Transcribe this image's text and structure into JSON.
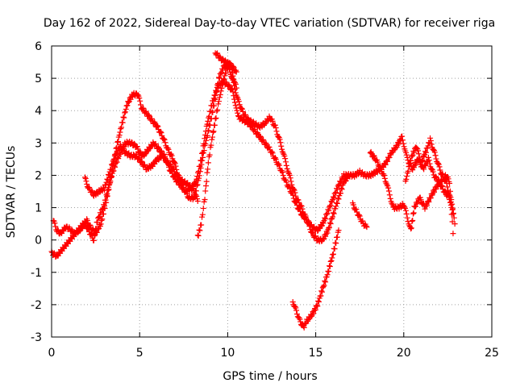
{
  "chart_data": {
    "type": "scatter",
    "title": "Day 162 of 2022, Sidereal Day-to-day VTEC variation (SDTVAR) for receiver riga",
    "xlabel": "GPS time / hours",
    "ylabel": "SDTVAR / TECUs",
    "xlim": [
      0,
      25
    ],
    "ylim": [
      -3,
      6
    ],
    "x_ticks": [
      0,
      5,
      10,
      15,
      20,
      25
    ],
    "y_ticks": [
      -3,
      -2,
      -1,
      0,
      1,
      2,
      3,
      4,
      5,
      6
    ],
    "grid": true,
    "marker": "+",
    "series": [
      {
        "name": "SDTVAR",
        "color": "#ff0000",
        "segments": [
          [
            [
              0.1,
              0.6
            ],
            [
              0.3,
              0.3
            ],
            [
              0.5,
              0.2
            ],
            [
              0.8,
              0.4
            ],
            [
              1.0,
              0.35
            ],
            [
              1.3,
              0.2
            ],
            [
              1.6,
              0.3
            ],
            [
              1.9,
              0.5
            ],
            [
              2.1,
              0.3
            ],
            [
              2.4,
              0.0
            ],
            [
              2.6,
              0.6
            ],
            [
              3.0,
              1.1
            ],
            [
              3.3,
              1.8
            ],
            [
              3.6,
              2.3
            ],
            [
              3.9,
              2.7
            ],
            [
              4.2,
              3.0
            ],
            [
              4.5,
              3.0
            ],
            [
              4.8,
              2.9
            ],
            [
              5.0,
              2.7
            ],
            [
              5.2,
              2.6
            ],
            [
              5.5,
              2.8
            ],
            [
              5.8,
              3.0
            ],
            [
              6.1,
              2.8
            ],
            [
              6.4,
              2.6
            ],
            [
              6.7,
              2.2
            ],
            [
              7.0,
              1.9
            ],
            [
              7.3,
              1.7
            ],
            [
              7.6,
              1.5
            ],
            [
              7.9,
              1.6
            ],
            [
              8.2,
              1.8
            ],
            [
              8.5,
              2.5
            ],
            [
              8.8,
              3.5
            ],
            [
              9.1,
              4.2
            ],
            [
              9.4,
              4.7
            ],
            [
              9.7,
              4.9
            ],
            [
              10.0,
              4.8
            ],
            [
              10.3,
              4.6
            ],
            [
              10.6,
              3.8
            ],
            [
              10.9,
              3.7
            ],
            [
              11.2,
              3.6
            ],
            [
              11.5,
              3.4
            ],
            [
              11.8,
              3.2
            ],
            [
              12.1,
              3.0
            ],
            [
              12.4,
              2.8
            ],
            [
              12.7,
              2.5
            ],
            [
              13.0,
              2.2
            ],
            [
              13.3,
              1.8
            ],
            [
              13.6,
              1.5
            ],
            [
              13.9,
              1.1
            ],
            [
              14.2,
              0.8
            ],
            [
              14.5,
              0.6
            ],
            [
              14.8,
              0.4
            ],
            [
              15.1,
              0.3
            ],
            [
              15.4,
              0.5
            ],
            [
              15.7,
              0.9
            ],
            [
              16.0,
              1.3
            ],
            [
              16.3,
              1.7
            ],
            [
              16.6,
              2.0
            ],
            [
              16.9,
              2.0
            ],
            [
              17.2,
              2.0
            ],
            [
              17.5,
              2.1
            ],
            [
              17.8,
              2.0
            ],
            [
              18.1,
              2.0
            ],
            [
              18.4,
              2.1
            ],
            [
              18.7,
              2.2
            ],
            [
              19.0,
              2.4
            ],
            [
              19.3,
              2.7
            ],
            [
              19.6,
              2.9
            ],
            [
              19.9,
              3.2
            ],
            [
              20.2,
              2.5
            ],
            [
              20.5,
              2.2
            ],
            [
              20.8,
              2.5
            ],
            [
              21.1,
              2.2
            ],
            [
              21.4,
              2.5
            ],
            [
              21.7,
              2.0
            ],
            [
              22.0,
              1.8
            ],
            [
              22.3,
              1.5
            ],
            [
              22.6,
              1.3
            ],
            [
              22.8,
              0.8
            ]
          ],
          [
            [
              0.0,
              -0.4
            ],
            [
              0.3,
              -0.5
            ],
            [
              0.6,
              -0.3
            ],
            [
              0.9,
              -0.1
            ],
            [
              1.2,
              0.1
            ],
            [
              1.5,
              0.3
            ],
            [
              1.8,
              0.5
            ],
            [
              2.0,
              0.6
            ],
            [
              2.2,
              0.4
            ],
            [
              2.5,
              0.2
            ],
            [
              2.8,
              0.5
            ],
            [
              3.1,
              1.2
            ],
            [
              3.4,
              2.0
            ],
            [
              3.7,
              2.9
            ],
            [
              4.0,
              3.6
            ],
            [
              4.3,
              4.2
            ],
            [
              4.6,
              4.5
            ],
            [
              4.9,
              4.5
            ],
            [
              5.1,
              4.1
            ],
            [
              5.4,
              3.9
            ],
            [
              5.7,
              3.7
            ],
            [
              6.0,
              3.5
            ],
            [
              6.3,
              3.2
            ],
            [
              6.6,
              2.8
            ],
            [
              6.9,
              2.5
            ],
            [
              7.2,
              2.0
            ],
            [
              7.5,
              1.6
            ],
            [
              7.8,
              1.3
            ],
            [
              8.1,
              1.3
            ],
            [
              8.4,
              2.0
            ],
            [
              8.7,
              2.9
            ],
            [
              9.0,
              3.6
            ],
            [
              9.3,
              4.4
            ],
            [
              9.5,
              5.0
            ],
            [
              9.8,
              5.4
            ],
            [
              10.1,
              5.3
            ],
            [
              10.3,
              4.9
            ],
            [
              10.6,
              4.3
            ],
            [
              10.9,
              3.9
            ],
            [
              11.2,
              3.7
            ],
            [
              11.5,
              3.6
            ],
            [
              11.8,
              3.5
            ],
            [
              12.1,
              3.6
            ],
            [
              12.4,
              3.8
            ],
            [
              12.7,
              3.5
            ],
            [
              13.0,
              3.0
            ],
            [
              13.3,
              2.4
            ],
            [
              13.6,
              1.8
            ],
            [
              13.9,
              1.3
            ],
            [
              14.2,
              1.0
            ],
            [
              14.5,
              0.6
            ],
            [
              14.8,
              0.2
            ],
            [
              15.1,
              0.0
            ],
            [
              15.4,
              0.0
            ],
            [
              15.7,
              0.3
            ],
            [
              16.0,
              0.8
            ],
            [
              16.3,
              1.3
            ],
            [
              16.6,
              1.8
            ],
            [
              16.8,
              1.9
            ]
          ],
          [
            [
              1.9,
              1.9
            ],
            [
              2.1,
              1.6
            ],
            [
              2.4,
              1.4
            ],
            [
              2.7,
              1.5
            ],
            [
              3.0,
              1.6
            ],
            [
              3.3,
              2.1
            ],
            [
              3.6,
              2.6
            ],
            [
              3.9,
              2.9
            ],
            [
              4.2,
              2.7
            ],
            [
              4.5,
              2.6
            ],
            [
              4.8,
              2.6
            ],
            [
              5.1,
              2.4
            ],
            [
              5.4,
              2.2
            ],
            [
              5.7,
              2.3
            ],
            [
              6.0,
              2.5
            ],
            [
              6.3,
              2.6
            ],
            [
              6.6,
              2.4
            ],
            [
              6.9,
              2.2
            ],
            [
              7.2,
              1.9
            ],
            [
              7.5,
              1.8
            ],
            [
              7.8,
              1.7
            ],
            [
              8.1,
              1.5
            ],
            [
              8.3,
              1.2
            ]
          ],
          [
            [
              8.3,
              0.1
            ],
            [
              8.5,
              0.5
            ],
            [
              8.7,
              1.3
            ],
            [
              8.9,
              2.4
            ],
            [
              9.1,
              3.1
            ],
            [
              9.3,
              3.7
            ],
            [
              9.5,
              4.3
            ],
            [
              9.7,
              4.8
            ],
            [
              9.9,
              5.2
            ],
            [
              10.1,
              5.5
            ],
            [
              10.3,
              5.1
            ],
            [
              10.5,
              4.7
            ]
          ],
          [
            [
              9.3,
              5.8
            ],
            [
              9.6,
              5.6
            ],
            [
              9.9,
              5.5
            ],
            [
              10.2,
              5.4
            ],
            [
              10.5,
              5.2
            ]
          ],
          [
            [
              13.7,
              -1.9
            ],
            [
              13.9,
              -2.2
            ],
            [
              14.1,
              -2.5
            ],
            [
              14.3,
              -2.7
            ],
            [
              14.5,
              -2.5
            ],
            [
              14.8,
              -2.3
            ],
            [
              15.1,
              -2.0
            ],
            [
              15.4,
              -1.5
            ],
            [
              15.7,
              -1.0
            ],
            [
              16.0,
              -0.4
            ],
            [
              16.3,
              0.3
            ]
          ],
          [
            [
              17.1,
              1.1
            ],
            [
              17.3,
              0.9
            ],
            [
              17.5,
              0.7
            ],
            [
              17.7,
              0.5
            ],
            [
              17.9,
              0.4
            ]
          ],
          [
            [
              18.1,
              2.7
            ],
            [
              18.4,
              2.5
            ],
            [
              18.7,
              2.2
            ],
            [
              19.0,
              1.8
            ],
            [
              19.2,
              1.4
            ],
            [
              19.4,
              1.0
            ],
            [
              19.7,
              1.0
            ],
            [
              20.0,
              1.1
            ],
            [
              20.2,
              0.7
            ],
            [
              20.4,
              0.3
            ],
            [
              20.6,
              1.0
            ],
            [
              20.9,
              1.3
            ],
            [
              21.2,
              1.0
            ],
            [
              21.5,
              1.3
            ],
            [
              21.8,
              1.6
            ],
            [
              22.1,
              1.8
            ],
            [
              22.4,
              2.0
            ],
            [
              22.6,
              1.8
            ],
            [
              22.8,
              0.2
            ]
          ],
          [
            [
              20.1,
              1.8
            ],
            [
              20.4,
              2.5
            ],
            [
              20.7,
              2.9
            ],
            [
              21.0,
              2.4
            ],
            [
              21.3,
              2.8
            ],
            [
              21.5,
              3.1
            ],
            [
              21.8,
              2.6
            ],
            [
              22.1,
              2.1
            ],
            [
              22.4,
              1.8
            ],
            [
              22.7,
              1.2
            ],
            [
              22.9,
              0.5
            ]
          ]
        ]
      }
    ]
  }
}
